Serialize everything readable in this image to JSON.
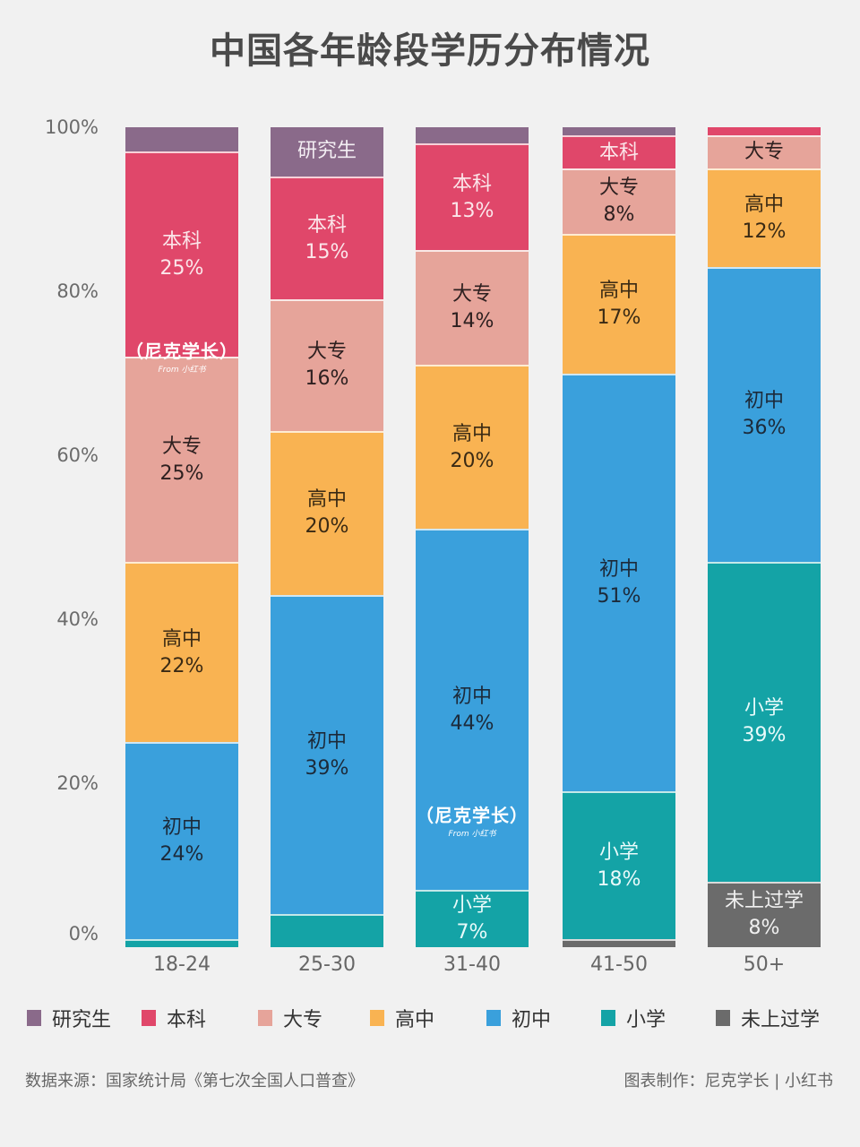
{
  "title": "中国各年龄段学历分布情况",
  "colors": {
    "研究生": "#8a6a8a",
    "本科": "#e0476a",
    "大专": "#e6a49a",
    "高中": "#f9b352",
    "初中": "#3aa0dc",
    "小学": "#14a3a6",
    "未上过学": "#6b6b6b"
  },
  "y_ticks": [
    "100%",
    "80%",
    "60%",
    "40%",
    "20%",
    "0%"
  ],
  "legend": [
    {
      "label": "研究生",
      "color": "#8a6a8a"
    },
    {
      "label": "本科",
      "color": "#e0476a"
    },
    {
      "label": "大专",
      "color": "#e6a49a"
    },
    {
      "label": "高中",
      "color": "#f9b352"
    },
    {
      "label": "初中",
      "color": "#3aa0dc"
    },
    {
      "label": "小学",
      "color": "#14a3a6"
    },
    {
      "label": "未上过学",
      "color": "#6b6b6b"
    }
  ],
  "x_labels": [
    "18-24",
    "25-30",
    "31-40",
    "41-50",
    "50+"
  ],
  "footer": {
    "source": "数据来源：国家统计局《第七次全国人口普查》",
    "credit": "图表制作：尼克学长 | 小红书"
  },
  "watermark": {
    "main": "（尼克学长）",
    "sub": "From 小红书"
  },
  "chart_data": {
    "type": "bar",
    "stacked": true,
    "normalized": true,
    "title": "中国各年龄段学历分布情况",
    "xlabel": "",
    "ylabel": "",
    "ylim": [
      0,
      100
    ],
    "y_tick_labels": [
      "0%",
      "20%",
      "40%",
      "60%",
      "80%",
      "100%"
    ],
    "grid": false,
    "legend_position": "bottom",
    "categories": [
      "18-24",
      "25-30",
      "31-40",
      "41-50",
      "50+"
    ],
    "series": [
      {
        "name": "未上过学",
        "color": "#6b6b6b",
        "values": [
          0,
          0,
          0,
          1,
          8
        ],
        "labels": [
          "",
          "",
          "",
          "",
          "未上过学 8%"
        ]
      },
      {
        "name": "小学",
        "color": "#14a3a6",
        "values": [
          1,
          4,
          7,
          18,
          39
        ],
        "labels": [
          "",
          "",
          "小学 7%",
          "小学 18%",
          "小学 39%"
        ]
      },
      {
        "name": "初中",
        "color": "#3aa0dc",
        "values": [
          24,
          39,
          44,
          51,
          36
        ],
        "labels": [
          "初中 24%",
          "初中 39%",
          "初中 44%",
          "初中 51%",
          "初中 36%"
        ]
      },
      {
        "name": "高中",
        "color": "#f9b352",
        "values": [
          22,
          20,
          20,
          17,
          12
        ],
        "labels": [
          "高中 22%",
          "高中 20%",
          "高中 20%",
          "高中 17%",
          "高中 12%"
        ]
      },
      {
        "name": "大专",
        "color": "#e6a49a",
        "values": [
          25,
          16,
          14,
          8,
          4
        ],
        "labels": [
          "大专 25%",
          "大专 16%",
          "大专 14%",
          "大专 8%",
          "大专"
        ]
      },
      {
        "name": "本科",
        "color": "#e0476a",
        "values": [
          25,
          15,
          13,
          4,
          1
        ],
        "labels": [
          "本科 25%",
          "本科 15%",
          "本科 13%",
          "本科",
          ""
        ]
      },
      {
        "name": "研究生",
        "color": "#8a6a8a",
        "values": [
          3,
          6,
          2,
          1,
          0
        ],
        "labels": [
          "",
          "研究生",
          "",
          "",
          ""
        ]
      }
    ]
  },
  "bars": [
    {
      "category": "18-24",
      "segments": [
        {
          "name": "小学",
          "value": 1,
          "label": "",
          "pct": "",
          "color": "#14a3a6",
          "text": "#fff"
        },
        {
          "name": "初中",
          "value": 24,
          "label": "初中",
          "pct": "24%",
          "color": "#3aa0dc",
          "text": "#1c2a3a"
        },
        {
          "name": "高中",
          "value": 22,
          "label": "高中",
          "pct": "22%",
          "color": "#f9b352",
          "text": "#3a2a14"
        },
        {
          "name": "大专",
          "value": 25,
          "label": "大专",
          "pct": "25%",
          "color": "#e6a49a",
          "text": "#2e2020"
        },
        {
          "name": "本科",
          "value": 25,
          "label": "本科",
          "pct": "25%",
          "color": "#e0476a",
          "text": "#fbe6ea"
        },
        {
          "name": "研究生",
          "value": 3,
          "label": "",
          "pct": "",
          "color": "#8a6a8a",
          "text": "#fff"
        }
      ]
    },
    {
      "category": "25-30",
      "segments": [
        {
          "name": "小学",
          "value": 4,
          "label": "",
          "pct": "",
          "color": "#14a3a6",
          "text": "#fff"
        },
        {
          "name": "初中",
          "value": 39,
          "label": "初中",
          "pct": "39%",
          "color": "#3aa0dc",
          "text": "#1c2a3a"
        },
        {
          "name": "高中",
          "value": 20,
          "label": "高中",
          "pct": "20%",
          "color": "#f9b352",
          "text": "#3a2a14"
        },
        {
          "name": "大专",
          "value": 16,
          "label": "大专",
          "pct": "16%",
          "color": "#e6a49a",
          "text": "#2e2020"
        },
        {
          "name": "本科",
          "value": 15,
          "label": "本科",
          "pct": "15%",
          "color": "#e0476a",
          "text": "#fbe6ea"
        },
        {
          "name": "研究生",
          "value": 6,
          "label": "研究生",
          "pct": "",
          "color": "#8a6a8a",
          "text": "#f3eef3"
        }
      ]
    },
    {
      "category": "31-40",
      "segments": [
        {
          "name": "小学",
          "value": 7,
          "label": "小学",
          "pct": "7%",
          "color": "#14a3a6",
          "text": "#e8fafa"
        },
        {
          "name": "初中",
          "value": 44,
          "label": "初中",
          "pct": "44%",
          "color": "#3aa0dc",
          "text": "#1c2a3a"
        },
        {
          "name": "高中",
          "value": 20,
          "label": "高中",
          "pct": "20%",
          "color": "#f9b352",
          "text": "#3a2a14"
        },
        {
          "name": "大专",
          "value": 14,
          "label": "大专",
          "pct": "14%",
          "color": "#e6a49a",
          "text": "#2e2020"
        },
        {
          "name": "本科",
          "value": 13,
          "label": "本科",
          "pct": "13%",
          "color": "#e0476a",
          "text": "#fbe6ea"
        },
        {
          "name": "研究生",
          "value": 2,
          "label": "",
          "pct": "",
          "color": "#8a6a8a",
          "text": "#fff"
        }
      ]
    },
    {
      "category": "41-50",
      "segments": [
        {
          "name": "未上过学",
          "value": 1,
          "label": "",
          "pct": "",
          "color": "#6b6b6b",
          "text": "#fff"
        },
        {
          "name": "小学",
          "value": 18,
          "label": "小学",
          "pct": "18%",
          "color": "#14a3a6",
          "text": "#e8fafa"
        },
        {
          "name": "初中",
          "value": 51,
          "label": "初中",
          "pct": "51%",
          "color": "#3aa0dc",
          "text": "#1c2a3a"
        },
        {
          "name": "高中",
          "value": 17,
          "label": "高中",
          "pct": "17%",
          "color": "#f9b352",
          "text": "#3a2a14"
        },
        {
          "name": "大专",
          "value": 8,
          "label": "大专",
          "pct": "8%",
          "color": "#e6a49a",
          "text": "#2e2020"
        },
        {
          "name": "本科",
          "value": 4,
          "label": "本科",
          "pct": "",
          "color": "#e0476a",
          "text": "#fbe6ea"
        },
        {
          "name": "研究生",
          "value": 1,
          "label": "",
          "pct": "",
          "color": "#8a6a8a",
          "text": "#fff"
        }
      ]
    },
    {
      "category": "50+",
      "segments": [
        {
          "name": "未上过学",
          "value": 8,
          "label": "未上过学",
          "pct": "8%",
          "color": "#6b6b6b",
          "text": "#f0f0f0"
        },
        {
          "name": "小学",
          "value": 39,
          "label": "小学",
          "pct": "39%",
          "color": "#14a3a6",
          "text": "#e8fafa"
        },
        {
          "name": "初中",
          "value": 36,
          "label": "初中",
          "pct": "36%",
          "color": "#3aa0dc",
          "text": "#1c2a3a"
        },
        {
          "name": "高中",
          "value": 12,
          "label": "高中",
          "pct": "12%",
          "color": "#f9b352",
          "text": "#3a2a14"
        },
        {
          "name": "大专",
          "value": 4,
          "label": "大专",
          "pct": "",
          "color": "#e6a49a",
          "text": "#2e2020"
        },
        {
          "name": "本科",
          "value": 1,
          "label": "",
          "pct": "",
          "color": "#e0476a",
          "text": "#fff"
        }
      ]
    }
  ]
}
